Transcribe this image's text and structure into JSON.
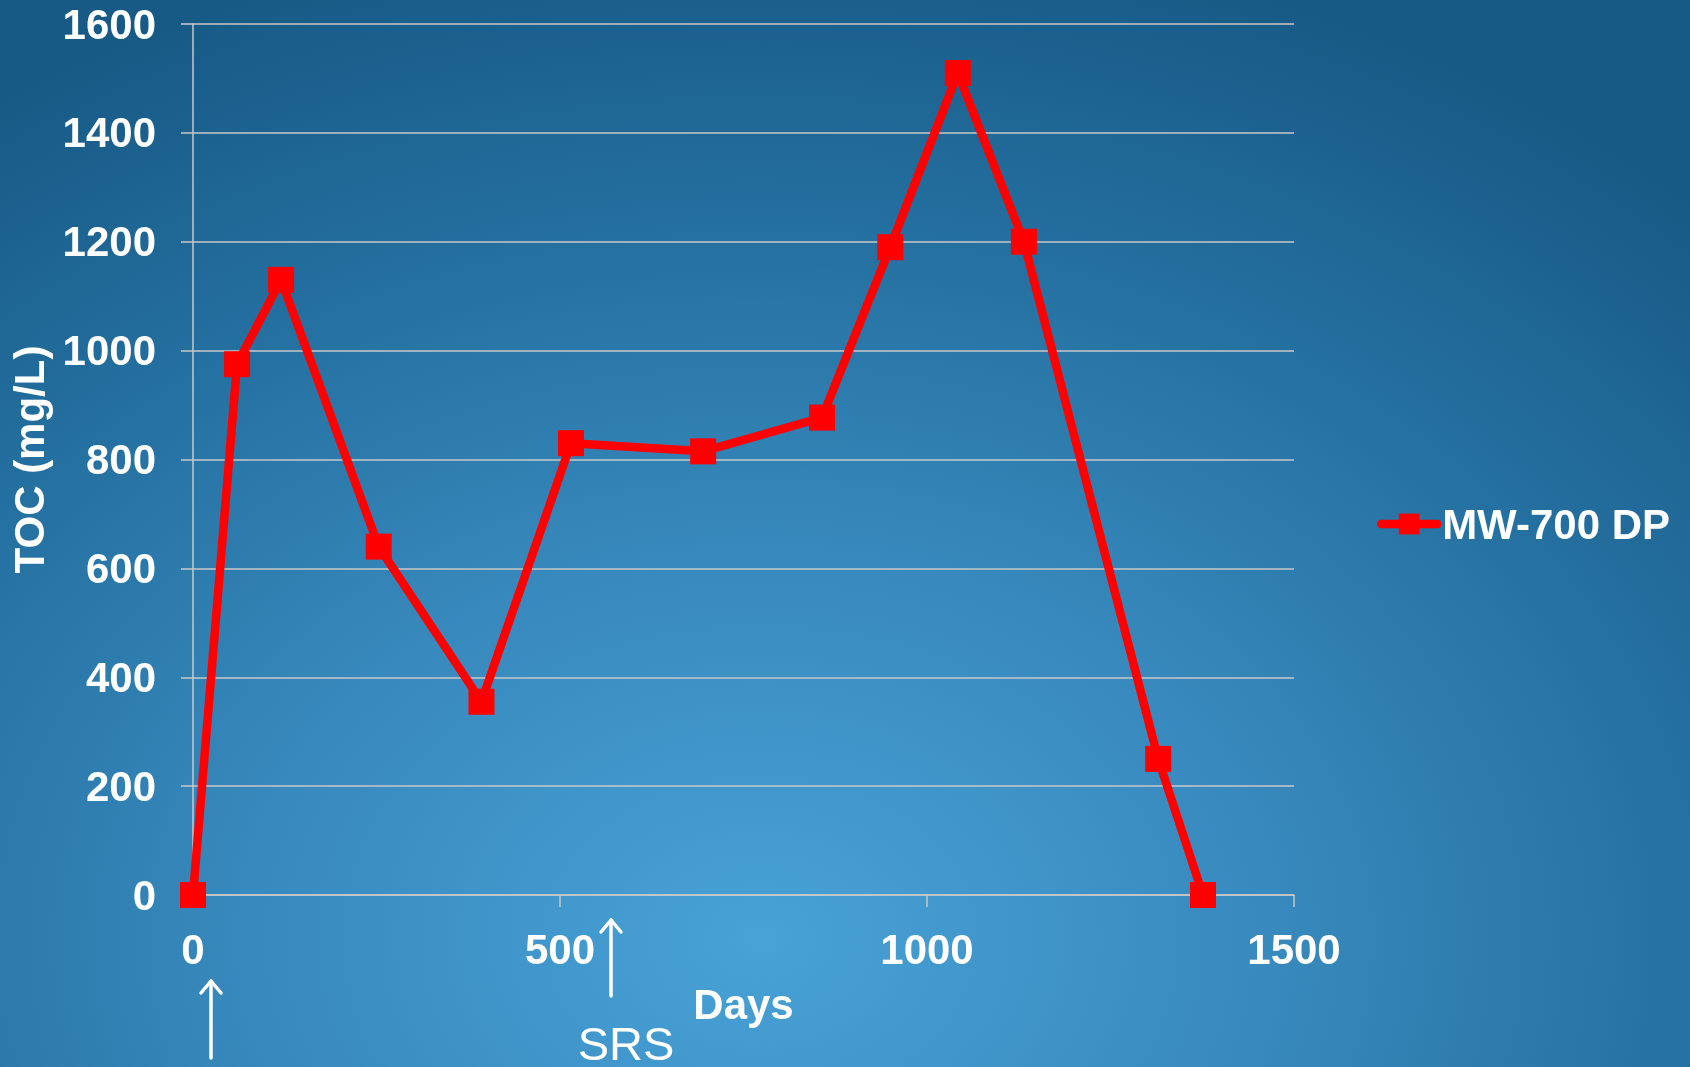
{
  "chart_data": {
    "type": "line",
    "xlabel": "Days",
    "ylabel": "TOC (mg/L)",
    "x": [
      0,
      60,
      120,
      253,
      393,
      515,
      695,
      857,
      950,
      1042,
      1132,
      1315,
      1376
    ],
    "series": [
      {
        "name": "MW-700 DP",
        "color": "#ff0000",
        "values": [
          0,
          975,
          1130,
          640,
          355,
          830,
          815,
          877,
          1190,
          1510,
          1200,
          250,
          0
        ]
      }
    ],
    "xlim": [
      0,
      1500
    ],
    "xticks": [
      0,
      500,
      1000,
      1500
    ],
    "ylim": [
      0,
      1600
    ],
    "yticks": [
      0,
      200,
      400,
      600,
      800,
      1000,
      1200,
      1400,
      1600
    ],
    "grid": "y",
    "legend": "right",
    "marker": "square",
    "line_style": "solid",
    "annotations": [
      "SRS"
    ]
  }
}
